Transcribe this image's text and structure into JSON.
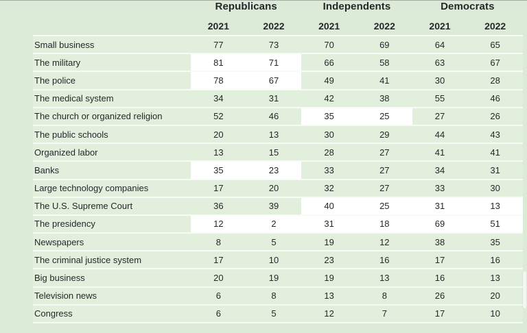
{
  "colors": {
    "page_bg": "#dcead8",
    "row_bg": "#e2efdd",
    "highlight": "#ffffff",
    "separator": "#f7fbf5",
    "text": "#24282b",
    "top_edge_line": "#7b827b",
    "scrollbar_thumb": "#f3f7f1"
  },
  "table": {
    "groups": [
      {
        "label": "Republicans",
        "years": [
          "2021",
          "2022"
        ]
      },
      {
        "label": "Independents",
        "years": [
          "2021",
          "2022"
        ]
      },
      {
        "label": "Democrats",
        "years": [
          "2021",
          "2022"
        ]
      }
    ],
    "rows": [
      {
        "label": "Small business",
        "values": [
          77,
          73,
          70,
          69,
          64,
          65
        ],
        "highlight": []
      },
      {
        "label": "The military",
        "values": [
          81,
          71,
          66,
          58,
          63,
          67
        ],
        "highlight": [
          "Republicans"
        ]
      },
      {
        "label": "The police",
        "values": [
          78,
          67,
          49,
          41,
          30,
          28
        ],
        "highlight": [
          "Republicans"
        ]
      },
      {
        "label": "The medical system",
        "values": [
          34,
          31,
          42,
          38,
          55,
          46
        ],
        "highlight": []
      },
      {
        "label": "The church or organized religion",
        "values": [
          52,
          46,
          35,
          25,
          27,
          26
        ],
        "highlight": [
          "Independents"
        ]
      },
      {
        "label": "The public schools",
        "values": [
          20,
          13,
          30,
          29,
          44,
          43
        ],
        "highlight": []
      },
      {
        "label": "Organized labor",
        "values": [
          13,
          15,
          28,
          27,
          41,
          41
        ],
        "highlight": []
      },
      {
        "label": "Banks",
        "values": [
          35,
          23,
          33,
          27,
          34,
          31
        ],
        "highlight": [
          "Republicans"
        ]
      },
      {
        "label": "Large technology companies",
        "values": [
          17,
          20,
          32,
          27,
          33,
          30
        ],
        "highlight": []
      },
      {
        "label": "The U.S. Supreme Court",
        "values": [
          36,
          39,
          40,
          25,
          31,
          13
        ],
        "highlight": [
          "Independents",
          "Democrats"
        ]
      },
      {
        "label": "The presidency",
        "values": [
          12,
          2,
          31,
          18,
          69,
          51
        ],
        "highlight": [
          "Republicans",
          "Independents",
          "Democrats"
        ]
      },
      {
        "label": "Newspapers",
        "values": [
          8,
          5,
          19,
          12,
          38,
          35
        ],
        "highlight": []
      },
      {
        "label": "The criminal justice system",
        "values": [
          17,
          10,
          23,
          16,
          17,
          16
        ],
        "highlight": []
      },
      {
        "label": "Big business",
        "values": [
          20,
          19,
          19,
          13,
          16,
          13
        ],
        "highlight": []
      },
      {
        "label": "Television news",
        "values": [
          6,
          8,
          13,
          8,
          26,
          20
        ],
        "highlight": []
      },
      {
        "label": "Congress",
        "values": [
          6,
          5,
          12,
          7,
          17,
          10
        ],
        "highlight": []
      }
    ]
  },
  "chart_data": {
    "type": "table",
    "title": "",
    "column_groups": [
      "Republicans",
      "Independents",
      "Democrats"
    ],
    "columns": [
      "Republicans 2021",
      "Republicans 2022",
      "Independents 2021",
      "Independents 2022",
      "Democrats 2021",
      "Democrats 2022"
    ],
    "row_labels": [
      "Small business",
      "The military",
      "The police",
      "The medical system",
      "The church or organized religion",
      "The public schools",
      "Organized labor",
      "Banks",
      "Large technology companies",
      "The U.S. Supreme Court",
      "The presidency",
      "Newspapers",
      "The criminal justice system",
      "Big business",
      "Television news",
      "Congress"
    ],
    "values": [
      [
        77,
        73,
        70,
        69,
        64,
        65
      ],
      [
        81,
        71,
        66,
        58,
        63,
        67
      ],
      [
        78,
        67,
        49,
        41,
        30,
        28
      ],
      [
        34,
        31,
        42,
        38,
        55,
        46
      ],
      [
        52,
        46,
        35,
        25,
        27,
        26
      ],
      [
        20,
        13,
        30,
        29,
        44,
        43
      ],
      [
        13,
        15,
        28,
        27,
        41,
        41
      ],
      [
        35,
        23,
        33,
        27,
        34,
        31
      ],
      [
        17,
        20,
        32,
        27,
        33,
        30
      ],
      [
        36,
        39,
        40,
        25,
        31,
        13
      ],
      [
        12,
        2,
        31,
        18,
        69,
        51
      ],
      [
        8,
        5,
        19,
        12,
        38,
        35
      ],
      [
        17,
        10,
        23,
        16,
        17,
        16
      ],
      [
        20,
        19,
        19,
        13,
        16,
        13
      ],
      [
        6,
        8,
        13,
        8,
        26,
        20
      ],
      [
        6,
        5,
        12,
        7,
        17,
        10
      ]
    ],
    "highlighted_cells_note": "White-highlighted column groups per row: The military (Republicans), The police (Republicans), The church or organized religion (Independents), Banks (Republicans), The U.S. Supreme Court (Independents+Democrats), The presidency (all three groups)",
    "layout": {
      "grid": false,
      "legend": false,
      "cell_background": "light green",
      "highlight_background": "white"
    }
  }
}
